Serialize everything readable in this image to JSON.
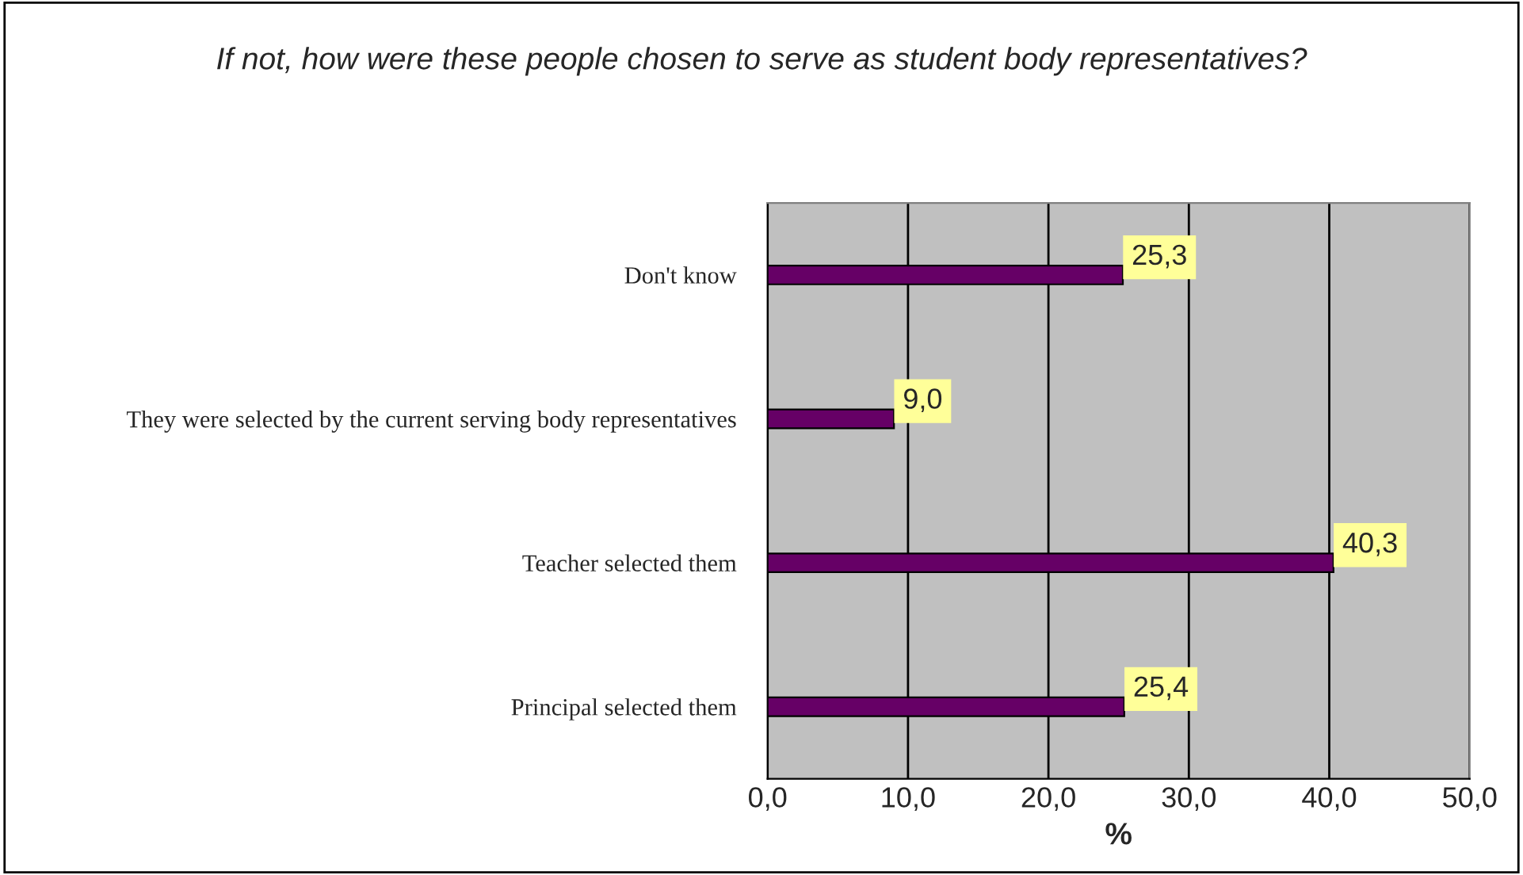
{
  "chart_data": {
    "type": "bar",
    "orientation": "horizontal",
    "title": "If not, how were these people chosen to serve as student body representatives?",
    "xlabel": "%",
    "categories": [
      "Don't know",
      "They were selected by the current serving body representatives",
      "Teacher selected them",
      "Principal selected them"
    ],
    "values": [
      25.3,
      9.0,
      40.3,
      25.4
    ],
    "value_labels": [
      "25,3",
      "9,0",
      "40,3",
      "25,4"
    ],
    "color": "#660066",
    "xlim": [
      0,
      50
    ],
    "xticks": [
      {
        "value": 0,
        "label": "0,0"
      },
      {
        "value": 10,
        "label": "10,0"
      },
      {
        "value": 20,
        "label": "20,0"
      },
      {
        "value": 30,
        "label": "30,0"
      },
      {
        "value": 40,
        "label": "40,0"
      },
      {
        "value": 50,
        "label": "50,0"
      }
    ],
    "grid": "x",
    "legend": false
  }
}
